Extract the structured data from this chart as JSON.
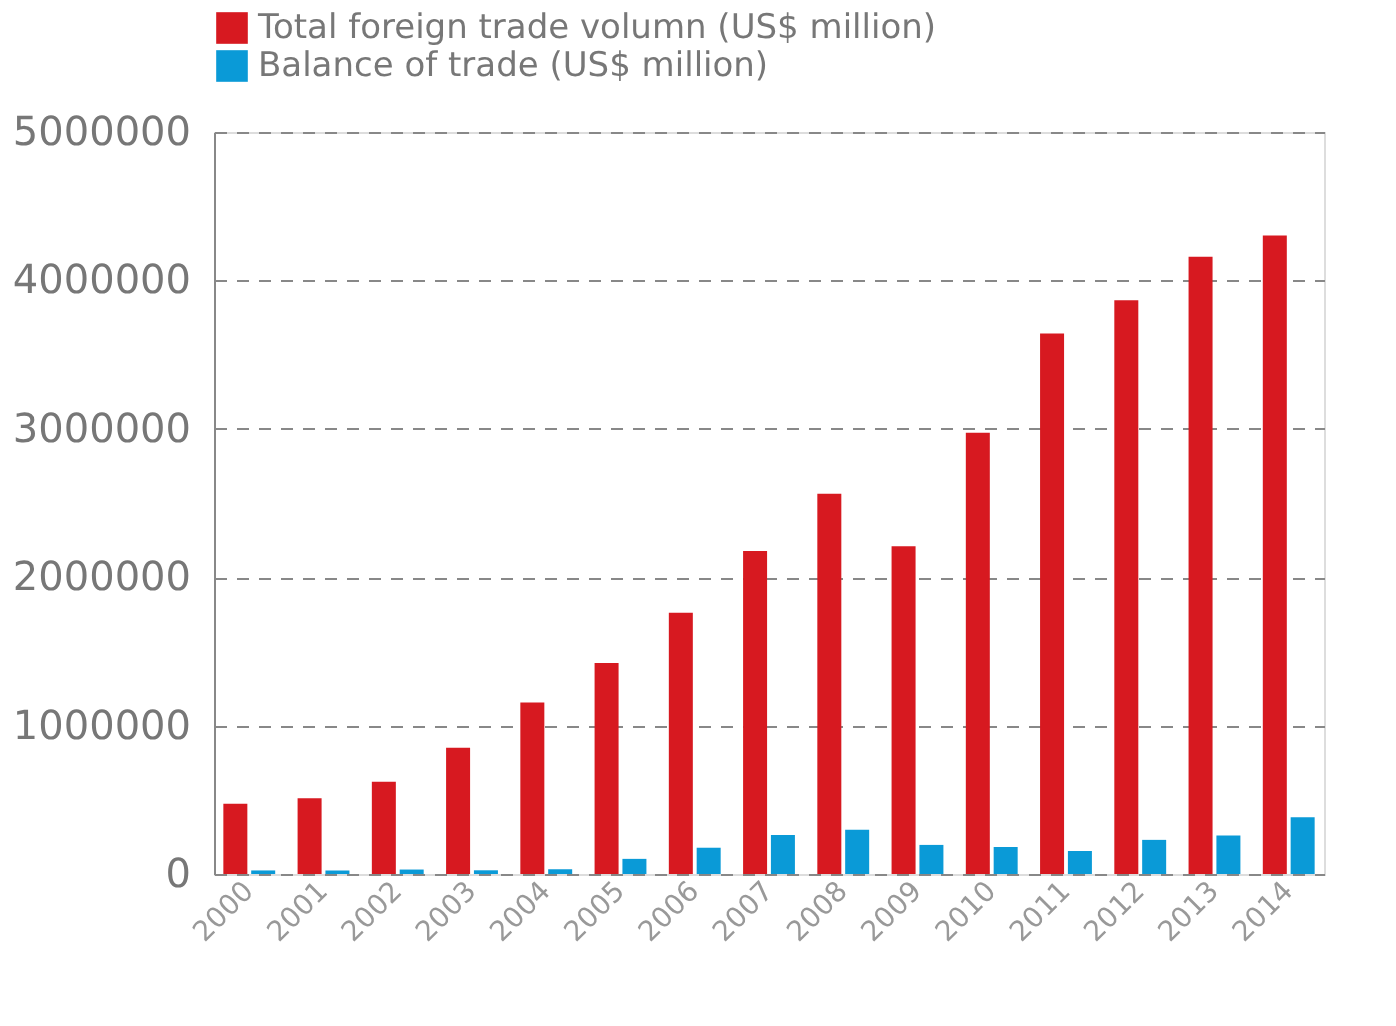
{
  "chart_data": {
    "type": "bar",
    "categories": [
      "2000",
      "2001",
      "2002",
      "2003",
      "2004",
      "2005",
      "2006",
      "2007",
      "2008",
      "2009",
      "2010",
      "2011",
      "2012",
      "2013",
      "2014"
    ],
    "series": [
      {
        "name": "Total foreign trade volumn (US$ million)",
        "color": "#d71920",
        "values": [
          474000,
          510000,
          621000,
          851000,
          1155000,
          1422000,
          1760000,
          2176000,
          2563000,
          2208000,
          2974000,
          3642000,
          3867000,
          4159000,
          4302000
        ]
      },
      {
        "name": "Balance of trade (US$ million)",
        "color": "#0a9ad7",
        "values": [
          24000,
          23000,
          30000,
          25000,
          32000,
          102000,
          177000,
          262000,
          298000,
          196000,
          182000,
          155000,
          230000,
          259000,
          382000
        ]
      }
    ],
    "ylim": [
      0,
      5000000
    ],
    "yticks": [
      0,
      1000000,
      2000000,
      3000000,
      4000000,
      5000000
    ],
    "grid": "y",
    "legend": "top left"
  }
}
